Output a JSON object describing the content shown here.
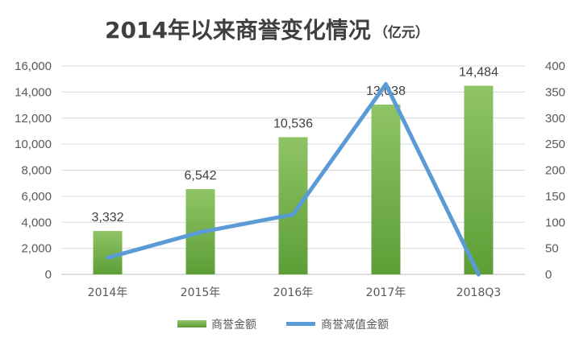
{
  "chart_data": {
    "type": "bar",
    "title": "2014年以来商誉变化情况",
    "title_unit": "（亿元）",
    "categories": [
      "2014年",
      "2015年",
      "2016年",
      "2017年",
      "2018Q3"
    ],
    "series": [
      {
        "name": "商誉金额",
        "type": "bar",
        "axis": "left",
        "values": [
          3332,
          6542,
          10536,
          13038,
          14484
        ],
        "data_labels": [
          "3,332",
          "6,542",
          "10,536",
          "13,038",
          "14,484"
        ]
      },
      {
        "name": "商誉减值金额",
        "type": "line",
        "axis": "right",
        "values": [
          32,
          81,
          115,
          365,
          0
        ]
      }
    ],
    "y_left": {
      "ylim": [
        0,
        16000
      ],
      "ticks": [
        "0",
        "2,000",
        "4,000",
        "6,000",
        "8,000",
        "10,000",
        "12,000",
        "14,000",
        "16,000"
      ]
    },
    "y_right": {
      "ylim": [
        0,
        400
      ],
      "ticks": [
        "0",
        "50",
        "100",
        "150",
        "200",
        "250",
        "300",
        "350",
        "400"
      ]
    },
    "grid": true,
    "legend": "bottom",
    "colors": {
      "bar_top": "#8fc466",
      "bar_bottom": "#5d9e36",
      "line": "#5b9bd5",
      "grid": "#d9d9d9",
      "axis": "#bfbfbf"
    }
  }
}
